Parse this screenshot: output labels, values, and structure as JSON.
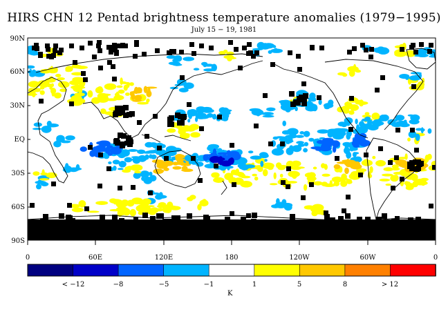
{
  "title": "HIRS CHN 12 Pentad brightness temperature anomalies (1979−1995)",
  "subtitle": "July 15 − 19, 1981",
  "map": {
    "lat_labels": [
      "90N",
      "60N",
      "30N",
      "EQ",
      "30S",
      "60S",
      "90S"
    ],
    "lon_labels": [
      "0",
      "60E",
      "120E",
      "180",
      "120W",
      "60W",
      "0"
    ],
    "missing_color": "#000000"
  },
  "colorbar": {
    "units": "K",
    "bins": [
      {
        "color": "#000080"
      },
      {
        "color": "#0000c8"
      },
      {
        "color": "#0064ff"
      },
      {
        "color": "#00b4ff"
      },
      {
        "color": "#ffffff"
      },
      {
        "color": "#ffff00"
      },
      {
        "color": "#ffc800"
      },
      {
        "color": "#ff8000"
      },
      {
        "color": "#ff0000"
      }
    ],
    "tick_labels": [
      "< −12",
      "−8",
      "−5",
      "−1",
      "1",
      "5",
      "8",
      "> 12"
    ]
  }
}
